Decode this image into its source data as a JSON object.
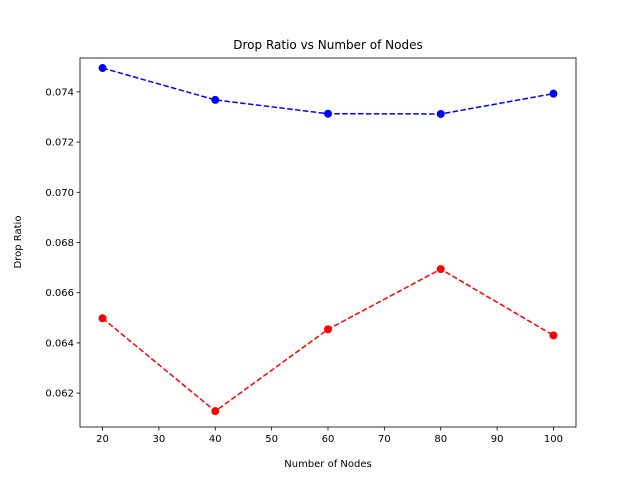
{
  "chart_data": {
    "type": "line",
    "title": "Drop Ratio vs Number of Nodes",
    "xlabel": "Number of Nodes",
    "ylabel": "Drop Ratio",
    "x": [
      20,
      40,
      60,
      80,
      100
    ],
    "xlim": [
      16,
      104
    ],
    "ylim": [
      0.06065,
      0.07535
    ],
    "xticks": [
      "20",
      "30",
      "40",
      "50",
      "60",
      "70",
      "80",
      "90",
      "100"
    ],
    "yticks": [
      "0.062",
      "0.064",
      "0.066",
      "0.068",
      "0.070",
      "0.072",
      "0.074"
    ],
    "grid": false,
    "series": [
      {
        "color": "#0000ff",
        "linestyle": "dashed",
        "marker": "circle",
        "values": [
          0.07495,
          0.07368,
          0.07313,
          0.07312,
          0.07393
        ]
      },
      {
        "color": "#ff0000",
        "linestyle": "dashed",
        "marker": "circle",
        "values": [
          0.06498,
          0.06128,
          0.06454,
          0.06694,
          0.0643
        ]
      }
    ]
  }
}
